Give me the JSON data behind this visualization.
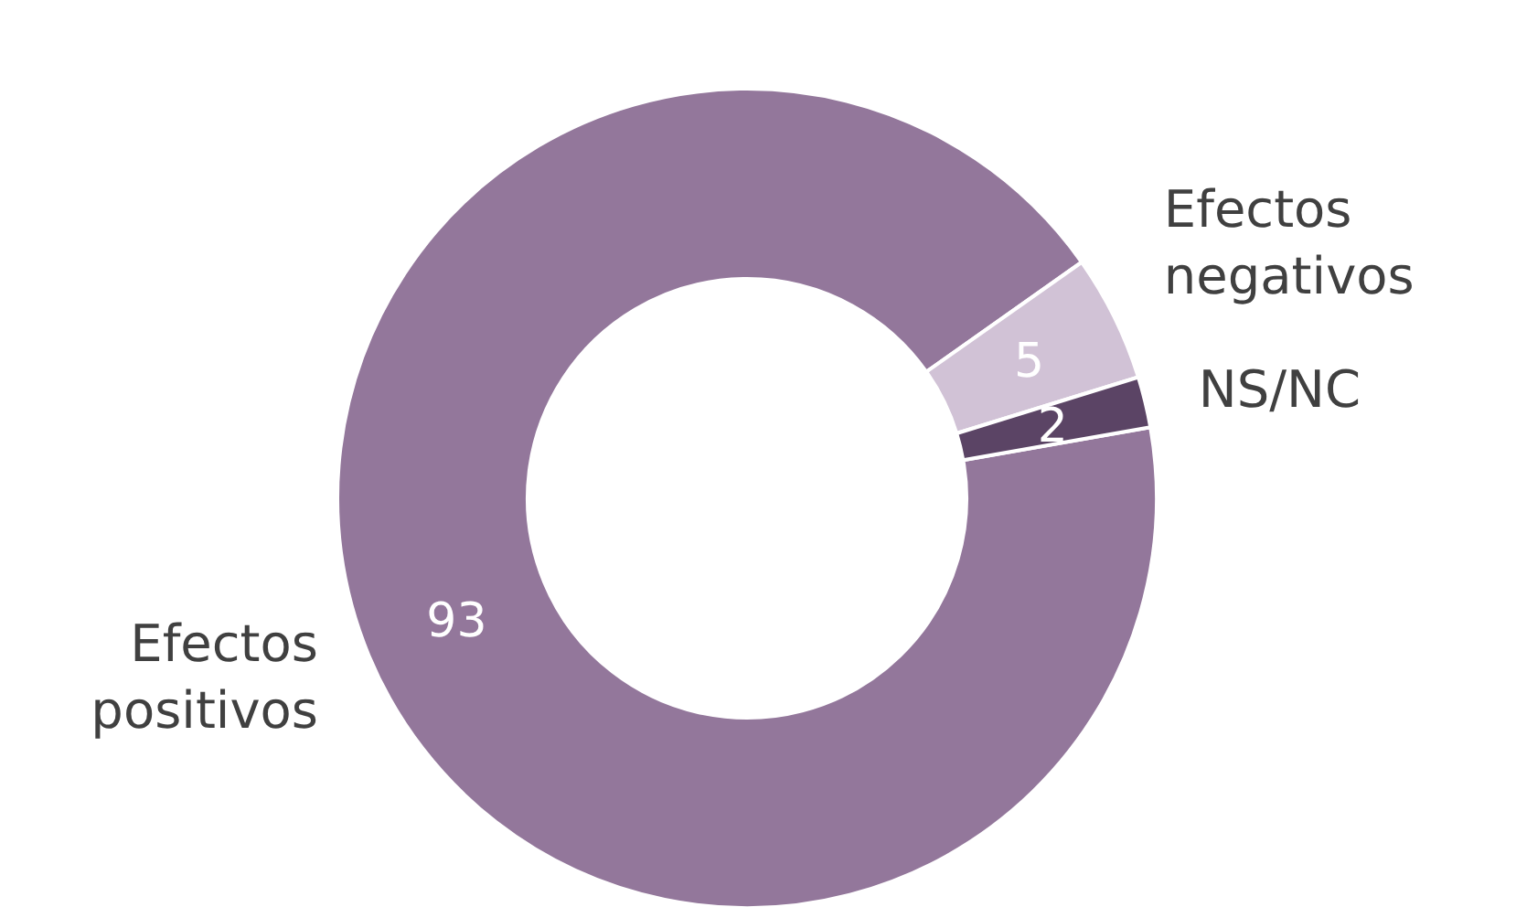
{
  "chart_data": {
    "type": "donut",
    "categories": [
      "Efectos positivos",
      "Efectos negativos",
      "NS/NC"
    ],
    "values": [
      93,
      5,
      2
    ],
    "colors": [
      "#93779b",
      "#d1c2d6",
      "#5b4465"
    ],
    "data_labels": true
  }
}
